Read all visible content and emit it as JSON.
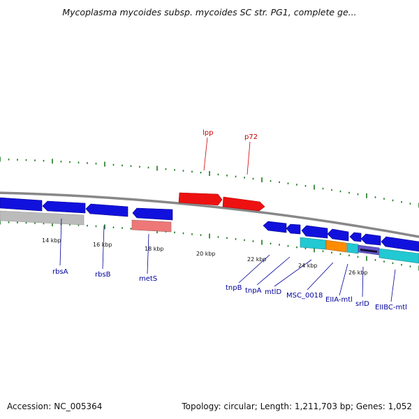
{
  "title": "Mycoplasma mycoides subsp. mycoides SC str. PG1, complete ge...",
  "footer": {
    "accession": "Accession: NC_005364",
    "stats": "Topology: circular; Length: 1,211,703 bp; Genes: 1,052"
  },
  "colors": {
    "backbone": "#888888",
    "forward_gene": "#ee1111",
    "reverse_gene": "#1111dd",
    "gene_label_forward": "#cc0000",
    "gene_label_reverse": "#00009a",
    "tick": "#1a7a1a",
    "cyan_feature": "#22c8d2",
    "orange_feature": "#ff8c00",
    "pink_feature": "#ee7777",
    "gray_feature": "#bbbbbb"
  },
  "scale_labels": [
    "14 kbp",
    "16 kbp",
    "18 kbp",
    "20 kbp",
    "22 kbp",
    "24 kbp",
    "26 kbp"
  ],
  "gene_labels": {
    "forward": [
      "lpp",
      "p72"
    ],
    "reverse": [
      "rbsA",
      "rbsB",
      "metS",
      "tnpB",
      "tnpA",
      "mtlD",
      "MSC_0018",
      "EIIA-mtl",
      "srlD",
      "EIIBC-mtl"
    ]
  }
}
